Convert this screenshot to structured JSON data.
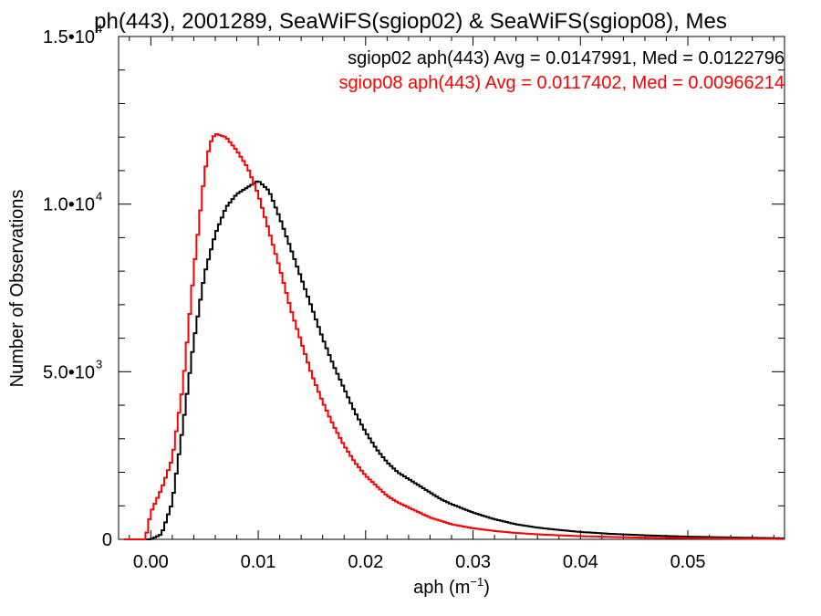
{
  "chart_data": {
    "type": "line",
    "title": "ph(443), 2001289, SeaWiFS(sgiop02) & SeaWiFS(sgiop08), Mes",
    "xlabel": "aph (m",
    "xlabel_sup": "−1",
    "xlabel_close": ")",
    "ylabel": "Number of Observations",
    "xlim": [
      -0.003,
      0.059
    ],
    "ylim": [
      0,
      15000
    ],
    "grid": false,
    "legend_position": "top-right",
    "x_ticks": [
      {
        "value": 0.0,
        "label": "0.00"
      },
      {
        "value": 0.01,
        "label": "0.01"
      },
      {
        "value": 0.02,
        "label": "0.02"
      },
      {
        "value": 0.03,
        "label": "0.03"
      },
      {
        "value": 0.04,
        "label": "0.04"
      },
      {
        "value": 0.05,
        "label": "0.05"
      }
    ],
    "y_ticks": [
      {
        "value": 0,
        "label": "0",
        "sup": ""
      },
      {
        "value": 5000,
        "label": "5.0•10",
        "sup": "3"
      },
      {
        "value": 10000,
        "label": "1.0•10",
        "sup": "4"
      },
      {
        "value": 15000,
        "label": "1.5•10",
        "sup": "4"
      }
    ],
    "series": [
      {
        "name": "sgiop02 aph(443) Avg = 0.0147991, Med = 0.0122796",
        "color": "#000000",
        "x": [
          0.0,
          0.001,
          0.002,
          0.003,
          0.004,
          0.005,
          0.006,
          0.007,
          0.008,
          0.009,
          0.01,
          0.011,
          0.012,
          0.013,
          0.014,
          0.015,
          0.016,
          0.017,
          0.018,
          0.019,
          0.02,
          0.021,
          0.022,
          0.023,
          0.024,
          0.025,
          0.026,
          0.027,
          0.028,
          0.03,
          0.032,
          0.034,
          0.036,
          0.038,
          0.04,
          0.043,
          0.046,
          0.05,
          0.055,
          0.059
        ],
        "y": [
          0,
          150,
          1100,
          3400,
          5900,
          7900,
          9100,
          9900,
          10300,
          10500,
          10700,
          10400,
          9600,
          8700,
          7800,
          6900,
          6000,
          5200,
          4500,
          3800,
          3200,
          2700,
          2300,
          2000,
          1800,
          1600,
          1400,
          1200,
          1050,
          800,
          600,
          450,
          350,
          280,
          220,
          160,
          120,
          80,
          50,
          30
        ]
      },
      {
        "name": "sgiop08 aph(443) Avg = 0.0117402, Med = 0.00966214",
        "color": "#ff0000",
        "x": [
          -0.0005,
          0.0,
          0.001,
          0.002,
          0.003,
          0.004,
          0.005,
          0.0055,
          0.006,
          0.007,
          0.008,
          0.009,
          0.01,
          0.011,
          0.012,
          0.013,
          0.014,
          0.015,
          0.016,
          0.017,
          0.018,
          0.019,
          0.02,
          0.021,
          0.022,
          0.023,
          0.024,
          0.025,
          0.026,
          0.028,
          0.03,
          0.032,
          0.034,
          0.036,
          0.038,
          0.04,
          0.043,
          0.046,
          0.05,
          0.055,
          0.059
        ],
        "y": [
          0,
          800,
          1500,
          2400,
          4600,
          8000,
          10900,
          11800,
          12100,
          12000,
          11600,
          11100,
          10300,
          9200,
          8100,
          6900,
          5900,
          4900,
          4100,
          3400,
          2800,
          2300,
          1900,
          1600,
          1300,
          1100,
          950,
          800,
          650,
          450,
          330,
          250,
          190,
          150,
          120,
          95,
          70,
          50,
          35,
          20,
          10
        ]
      }
    ]
  }
}
